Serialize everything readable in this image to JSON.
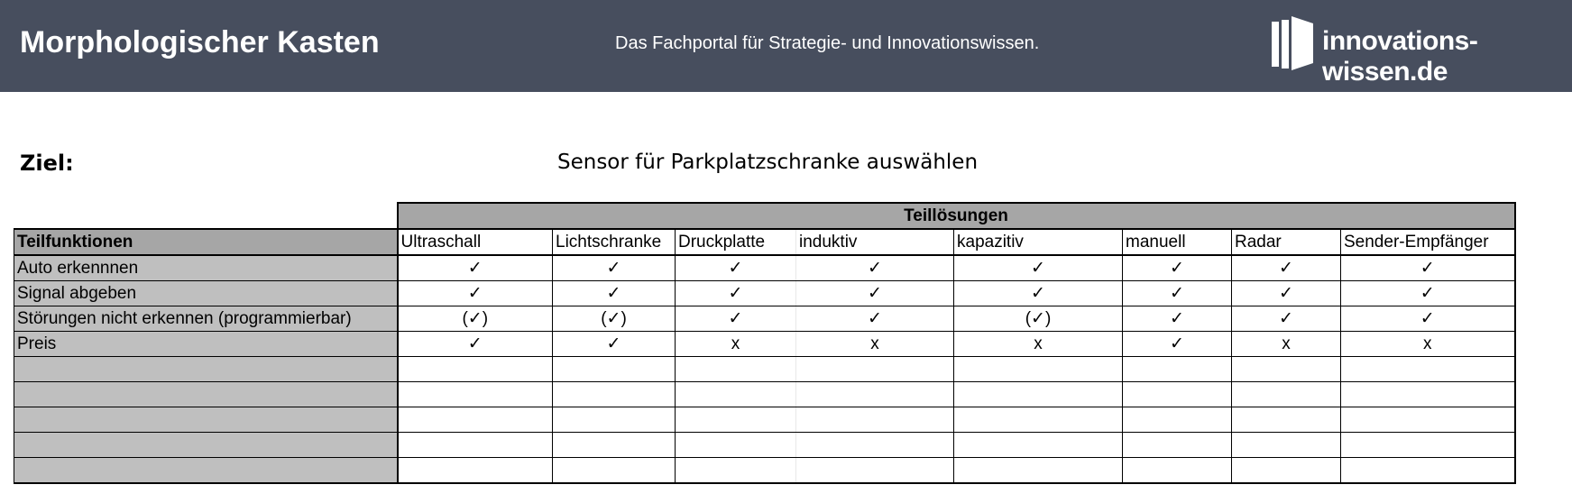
{
  "header": {
    "title": "Morphologischer Kasten",
    "tagline": "Das Fachportal für Strategie- und Innovationswissen.",
    "logo_text": "innovations-wissen.de",
    "bg_color": "#474e5e"
  },
  "goal": {
    "label": "Ziel:",
    "value": "Sensor für Parkplatzschranke auswählen"
  },
  "table": {
    "group_header": "Teillösungen",
    "row_header": "Teilfunktionen",
    "columns": [
      "Ultraschall",
      "Lichtschranke",
      "Druckplatte",
      "induktiv",
      "kapazitiv",
      "manuell",
      "Radar",
      "Sender-Empfänger"
    ],
    "rows": [
      {
        "label": "Auto erkennnen",
        "cells": [
          "✓",
          "✓",
          "✓",
          "✓",
          "✓",
          "✓",
          "✓",
          "✓"
        ]
      },
      {
        "label": "Signal abgeben",
        "cells": [
          "✓",
          "✓",
          "✓",
          "✓",
          "✓",
          "✓",
          "✓",
          "✓"
        ]
      },
      {
        "label": "Störungen nicht erkennen (programmierbar)",
        "cells": [
          "(✓)",
          "(✓)",
          "✓",
          "✓",
          "(✓)",
          "✓",
          "✓",
          "✓"
        ]
      },
      {
        "label": "Preis",
        "cells": [
          "✓",
          "✓",
          "x",
          "x",
          "x",
          "✓",
          "x",
          "x"
        ]
      },
      {
        "label": "",
        "cells": [
          "",
          "",
          "",
          "",
          "",
          "",
          "",
          ""
        ]
      },
      {
        "label": "",
        "cells": [
          "",
          "",
          "",
          "",
          "",
          "",
          "",
          ""
        ]
      },
      {
        "label": "",
        "cells": [
          "",
          "",
          "",
          "",
          "",
          "",
          "",
          ""
        ]
      },
      {
        "label": "",
        "cells": [
          "",
          "",
          "",
          "",
          "",
          "",
          "",
          ""
        ]
      },
      {
        "label": "",
        "cells": [
          "",
          "",
          "",
          "",
          "",
          "",
          "",
          ""
        ]
      }
    ]
  }
}
